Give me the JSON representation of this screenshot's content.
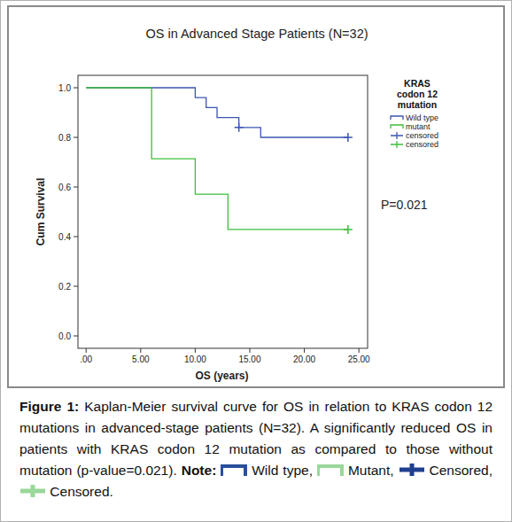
{
  "chart_data": {
    "type": "kaplan-meier",
    "title": "OS in Advanced Stage Patients (N=32)",
    "x_label": "OS (years)",
    "y_label": "Cum Survival",
    "legend_title": "KRAS codon 12 mutation",
    "legend": "upper right",
    "grid": false,
    "annotations": [
      "P=0.021"
    ],
    "xlim": [
      -0.75,
      25.8
    ],
    "ylim": [
      -0.05,
      1.05
    ],
    "xticks": [
      {
        "value": 0,
        "label": ".00"
      },
      {
        "value": 5,
        "label": "5.00"
      },
      {
        "value": 10,
        "label": "10.00"
      },
      {
        "value": 15,
        "label": "15.00"
      },
      {
        "value": 20,
        "label": "20.00"
      },
      {
        "value": 25,
        "label": "25.00"
      }
    ],
    "yticks": [
      {
        "value": 0,
        "label": "0.0"
      },
      {
        "value": 0.2,
        "label": "0.2"
      },
      {
        "value": 0.4,
        "label": "0.4"
      },
      {
        "value": 0.6,
        "label": "0.6"
      },
      {
        "value": 0.8,
        "label": "0.8"
      },
      {
        "value": 1,
        "label": "1.0"
      }
    ],
    "series": [
      {
        "name": "Wild type",
        "type": "step",
        "color": "#3b56b0",
        "x": [
          0,
          10,
          11,
          12,
          14,
          16,
          24
        ],
        "values": [
          1,
          0.96,
          0.92,
          0.88,
          0.84,
          0.8,
          0.8
        ]
      },
      {
        "name": "mutant",
        "type": "step",
        "color": "#3cbf3c",
        "x": [
          0,
          6,
          10,
          13,
          24
        ],
        "values": [
          1,
          0.714,
          0.571,
          0.429,
          0.429
        ]
      },
      {
        "name": "censored",
        "type": "scatter",
        "marker": "plus",
        "color": "#3b56b0",
        "x": [
          14,
          24
        ],
        "values": [
          0.84,
          0.8
        ]
      },
      {
        "name": "censored",
        "type": "scatter",
        "marker": "plus",
        "color": "#3cbf3c",
        "x": [
          24
        ],
        "values": [
          0.429
        ]
      }
    ]
  },
  "caption": {
    "label": "Figure 1:",
    "text": "Kaplan-Meier survival curve for OS in relation to KRAS codon 12 mutations in advanced-stage patients (N=32). A significantly reduced OS in patients with KRAS codon 12 mutation as compared to those without mutation (p-value=0.021).",
    "note_label": "Note:",
    "items": [
      "Wild type,",
      "Mutant,",
      "Censored,",
      "Censored."
    ]
  }
}
